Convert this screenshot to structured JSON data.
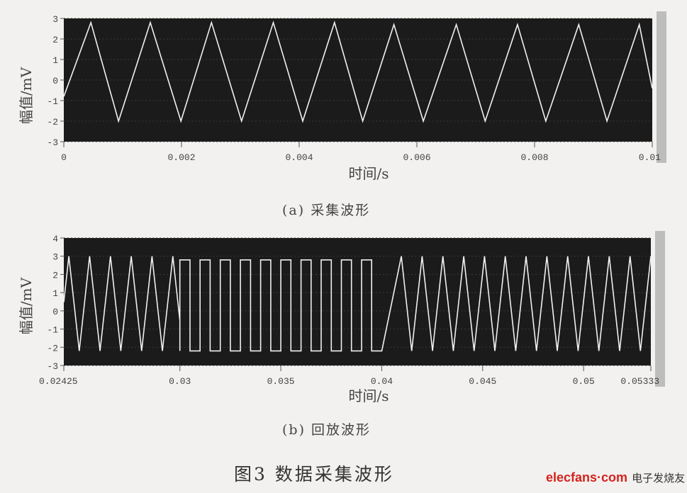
{
  "chart_data": [
    {
      "type": "line",
      "ylabel": "幅值/mV",
      "xlabel": "时间/s",
      "caption": "(a) 采集波形",
      "xlim": [
        0,
        0.01
      ],
      "ylim": [
        -3,
        3
      ],
      "xticks": [
        0,
        0.002,
        0.004,
        0.006,
        0.008,
        0.01
      ],
      "xtick_labels": [
        "0",
        "0.002",
        "0.004",
        "0.006",
        "0.008",
        "0.01"
      ],
      "yticks": [
        -3,
        -2,
        -1,
        0,
        1,
        2,
        3
      ],
      "ytick_labels": [
        "-3",
        "-2",
        "-1",
        "0",
        "1",
        "2",
        "3"
      ],
      "grid": true,
      "background": "#1b1b1b",
      "line_color": "#f0f0f0",
      "series": [
        {
          "x": [
            0,
            0.00046,
            0.00093,
            0.00147,
            0.00199,
            0.00251,
            0.00302,
            0.00356,
            0.00406,
            0.0046,
            0.00508,
            0.00561,
            0.00611,
            0.00667,
            0.00716,
            0.00771,
            0.00819,
            0.00875,
            0.00923,
            0.00978,
            0.01
          ],
          "y": [
            -0.8,
            2.8,
            -2.0,
            2.8,
            -2.0,
            2.8,
            -2.0,
            2.8,
            -2.0,
            2.8,
            -2.0,
            2.7,
            -2.0,
            2.7,
            -2.0,
            2.7,
            -2.0,
            2.7,
            -2.0,
            2.7,
            -0.4
          ]
        }
      ]
    },
    {
      "type": "line",
      "ylabel": "幅值/mV",
      "xlabel": "时间/s",
      "caption": "(b) 回放波形",
      "xlim": [
        0.02425,
        0.05333
      ],
      "ylim": [
        -3,
        4
      ],
      "xticks": [
        0.02425,
        0.03,
        0.035,
        0.04,
        0.045,
        0.05,
        0.05333
      ],
      "xtick_labels": [
        "0.02425",
        "0.03",
        "0.035",
        "0.04",
        "0.045",
        "0.05",
        "0.05333"
      ],
      "yticks": [
        -3,
        -2,
        -1,
        0,
        1,
        2,
        3,
        4
      ],
      "ytick_labels": [
        "-3",
        "-2",
        "-1",
        "0",
        "1",
        "2",
        "3",
        "4"
      ],
      "grid": true,
      "background": "#1b1b1b",
      "line_color": "#f0f0f0",
      "segments": [
        {
          "shape": "triangle",
          "t_start": 0.02425,
          "t_end": 0.03,
          "period": 0.00103,
          "max": 3.0,
          "min": -2.2,
          "first_peak": 0.0245
        },
        {
          "shape": "square",
          "t_start": 0.03,
          "t_end": 0.04,
          "period": 0.001,
          "max": 2.8,
          "min": -2.2,
          "first_rise": 0.03
        },
        {
          "shape": "triangle",
          "t_start": 0.04,
          "t_end": 0.05333,
          "period": 0.00103,
          "max": 3.0,
          "min": -2.2,
          "first_peak": 0.04097
        }
      ]
    }
  ],
  "figure_title": "图3 数据采集波形",
  "watermark": {
    "logo": "elecfans·com",
    "text": "电子发烧友"
  }
}
